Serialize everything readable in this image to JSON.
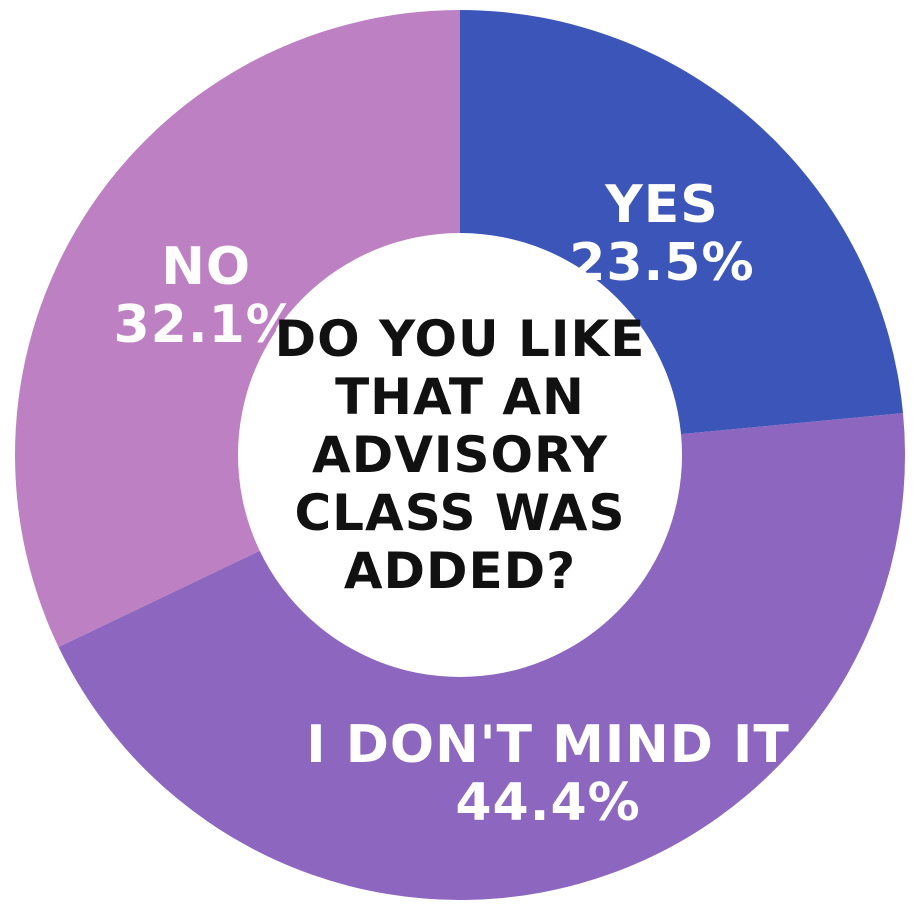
{
  "chart_data": {
    "type": "pie",
    "title": "DO YOU LIKE THAT AN ADVISORY CLASS WAS ADDED?",
    "title_lines": [
      "DO YOU LIKE",
      "THAT AN",
      "ADVISORY",
      "CLASS WAS",
      "ADDED?"
    ],
    "slices": [
      {
        "label": "YES",
        "value": 23.5,
        "value_label": "23.5%",
        "color": "#3b55b8"
      },
      {
        "label": "I DON'T MIND IT",
        "value": 44.4,
        "value_label": "44.4%",
        "color": "#8c66bf"
      },
      {
        "label": "NO",
        "value": 32.1,
        "value_label": "32.1%",
        "color": "#bd80c2"
      }
    ],
    "donut": true
  }
}
